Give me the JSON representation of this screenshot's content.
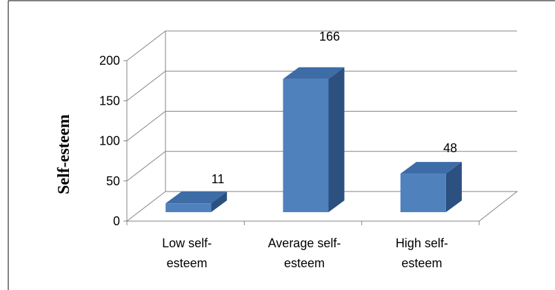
{
  "chart_data": {
    "type": "bar",
    "categories": [
      "Low self-esteem",
      "Average self-esteem",
      "High self-esteem"
    ],
    "category_lines": [
      [
        "Low self-",
        "esteem"
      ],
      [
        "Average self-",
        "esteem"
      ],
      [
        "High self-",
        "esteem"
      ]
    ],
    "values": [
      11,
      166,
      48
    ],
    "data_labels": [
      "11",
      "166",
      "48"
    ],
    "title": "",
    "xlabel": "",
    "ylabel": "Self-esteem",
    "ylim": [
      0,
      200
    ],
    "yticks": [
      "0",
      "50",
      "100",
      "150",
      "200"
    ],
    "grid": true,
    "legend": "none",
    "style": "3d-column"
  },
  "colors": {
    "bar_front": "#4f81bd",
    "bar_top": "#3d6ca6",
    "bar_side": "#2c5080",
    "grid": "#808080",
    "frame": "#000000"
  }
}
